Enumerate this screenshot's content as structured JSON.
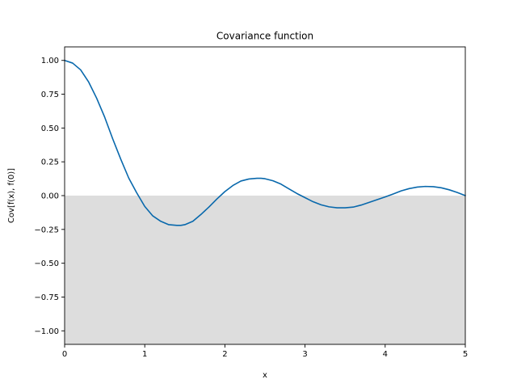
{
  "chart_data": {
    "type": "line",
    "title": "Covariance function",
    "xlabel": "x",
    "ylabel": "Cov[f(x), f(0)]",
    "xlim": [
      0,
      5
    ],
    "ylim": [
      -1.1,
      1.1
    ],
    "xticks": [
      0,
      1,
      2,
      3,
      4,
      5
    ],
    "xtick_labels": [
      "0",
      "1",
      "2",
      "3",
      "4",
      "5"
    ],
    "yticks": [
      1.0,
      0.75,
      0.5,
      0.25,
      0.0,
      -0.25,
      -0.5,
      -0.75,
      -1.0
    ],
    "ytick_labels": [
      "1.00",
      "0.75",
      "0.50",
      "0.25",
      "0.00",
      "−0.25",
      "−0.50",
      "−0.75",
      "−1.00"
    ],
    "grid": false,
    "shaded_region": {
      "y_from": -1.1,
      "y_to": 0.0,
      "color": "#dddddd"
    },
    "series": [
      {
        "color": "#0868ac",
        "x": [
          0.0,
          0.1,
          0.2,
          0.3,
          0.4,
          0.5,
          0.6,
          0.7,
          0.8,
          0.9,
          1.0,
          1.1,
          1.2,
          1.3,
          1.4,
          1.45,
          1.5,
          1.6,
          1.7,
          1.8,
          1.9,
          2.0,
          2.1,
          2.2,
          2.3,
          2.4,
          2.45,
          2.5,
          2.6,
          2.7,
          2.8,
          2.9,
          3.0,
          3.1,
          3.2,
          3.3,
          3.4,
          3.5,
          3.6,
          3.7,
          3.8,
          3.9,
          4.0,
          4.1,
          4.2,
          4.3,
          4.4,
          4.5,
          4.6,
          4.7,
          4.8,
          4.9,
          5.0
        ],
        "y": [
          1.0,
          0.98,
          0.93,
          0.84,
          0.72,
          0.58,
          0.42,
          0.27,
          0.13,
          0.02,
          -0.08,
          -0.15,
          -0.19,
          -0.215,
          -0.22,
          -0.22,
          -0.215,
          -0.19,
          -0.14,
          -0.085,
          -0.025,
          0.03,
          0.075,
          0.108,
          0.123,
          0.128,
          0.128,
          0.125,
          0.11,
          0.085,
          0.05,
          0.015,
          -0.015,
          -0.045,
          -0.068,
          -0.083,
          -0.09,
          -0.09,
          -0.085,
          -0.07,
          -0.05,
          -0.03,
          -0.01,
          0.012,
          0.035,
          0.052,
          0.063,
          0.068,
          0.066,
          0.058,
          0.043,
          0.023,
          0.0
        ]
      }
    ]
  }
}
